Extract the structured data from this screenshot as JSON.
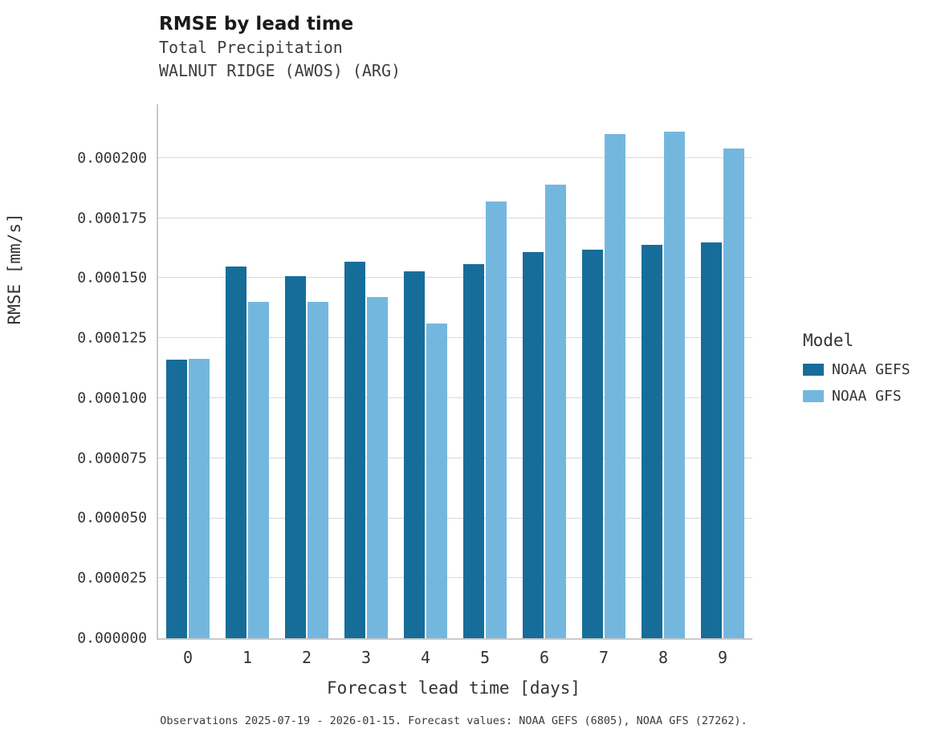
{
  "chart_data": {
    "type": "bar",
    "title": "RMSE by lead time",
    "subtitle": "Total Precipitation",
    "subtitle2": "WALNUT RIDGE (AWOS) (ARG)",
    "xlabel": "Forecast lead time [days]",
    "ylabel": "RMSE [mm/s]",
    "legend_title": "Model",
    "categories": [
      "0",
      "1",
      "2",
      "3",
      "4",
      "5",
      "6",
      "7",
      "8",
      "9"
    ],
    "series": [
      {
        "name": "NOAA GEFS",
        "color": "#176d99",
        "values": [
          0.000116,
          0.000155,
          0.000151,
          0.000157,
          0.000153,
          0.000156,
          0.000161,
          0.000162,
          0.000164,
          0.000165
        ]
      },
      {
        "name": "NOAA GFS",
        "color": "#74b7de",
        "values": [
          0.0001165,
          0.00014,
          0.00014,
          0.000142,
          0.000131,
          0.000182,
          0.000189,
          0.00021,
          0.000211,
          0.000204
        ]
      }
    ],
    "y_ticks": [
      {
        "value": 0.0,
        "label": "0.000000"
      },
      {
        "value": 2.5e-05,
        "label": "0.000025"
      },
      {
        "value": 5e-05,
        "label": "0.000050"
      },
      {
        "value": 7.5e-05,
        "label": "0.000075"
      },
      {
        "value": 0.0001,
        "label": "0.000100"
      },
      {
        "value": 0.000125,
        "label": "0.000125"
      },
      {
        "value": 0.00015,
        "label": "0.000150"
      },
      {
        "value": 0.000175,
        "label": "0.000175"
      },
      {
        "value": 0.0002,
        "label": "0.000200"
      }
    ],
    "ylim": [
      0,
      0.0002224
    ],
    "grid": "horizontal",
    "legend_position": "right",
    "caption": "Observations 2025-07-19 - 2026-01-15. Forecast values: NOAA GEFS (6805), NOAA GFS (27262)."
  }
}
